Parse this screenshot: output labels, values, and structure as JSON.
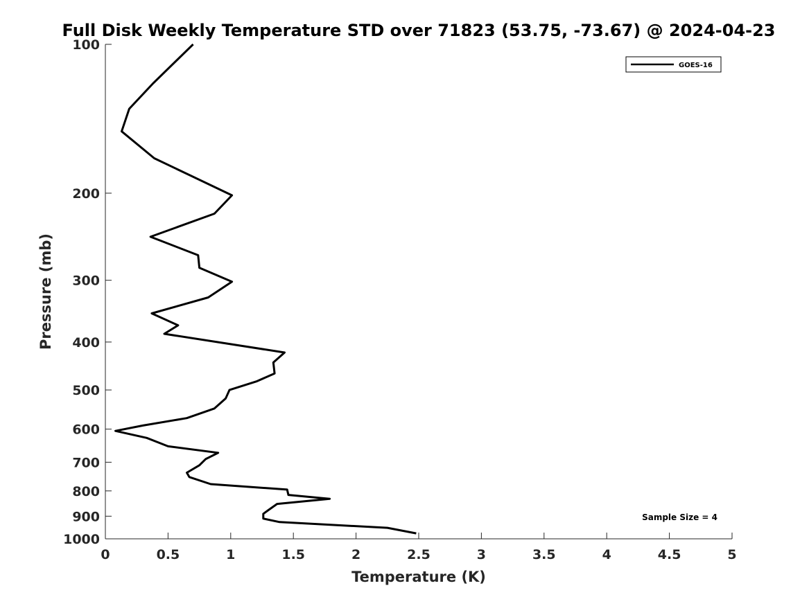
{
  "chart_data": {
    "type": "line",
    "title": "Full Disk Weekly Temperature STD over 71823 (53.75, -73.67) @ 2024-04-23",
    "xlabel": "Temperature (K)",
    "ylabel": "Pressure (mb)",
    "xlim": [
      0,
      5
    ],
    "ylim": [
      100,
      1000
    ],
    "y_scale": "log",
    "y_reversed": true,
    "x_ticks": [
      "0",
      "0.5",
      "1",
      "1.5",
      "2",
      "2.5",
      "3",
      "3.5",
      "4",
      "4.5",
      "5"
    ],
    "y_ticks": [
      "100",
      "200",
      "300",
      "400",
      "500",
      "600",
      "700",
      "800",
      "900",
      "1000"
    ],
    "grid": false,
    "legend_position": "top-right",
    "series": [
      {
        "name": "GOES-16",
        "color": "#000000",
        "x": [
          0.7,
          0.38,
          0.19,
          0.13,
          0.39,
          1.01,
          0.87,
          0.36,
          0.74,
          0.75,
          1.01,
          0.82,
          0.37,
          0.58,
          0.47,
          1.43,
          1.34,
          1.35,
          1.21,
          0.99,
          0.96,
          0.87,
          0.65,
          0.3,
          0.08,
          0.33,
          0.5,
          0.9,
          0.8,
          0.75,
          0.65,
          0.67,
          0.84,
          1.45,
          1.46,
          1.79,
          1.37,
          1.3,
          1.26,
          1.26,
          1.39,
          2.25,
          2.48
        ],
        "y": [
          100,
          120,
          135,
          150,
          170,
          202,
          220,
          245,
          267,
          283,
          302,
          325,
          350,
          370,
          385,
          420,
          440,
          463,
          480,
          500,
          520,
          545,
          570,
          590,
          605,
          625,
          650,
          670,
          690,
          710,
          735,
          750,
          775,
          795,
          815,
          830,
          850,
          875,
          890,
          910,
          925,
          950,
          975
        ]
      }
    ],
    "annotations": [
      "Sample Size = 4"
    ]
  }
}
